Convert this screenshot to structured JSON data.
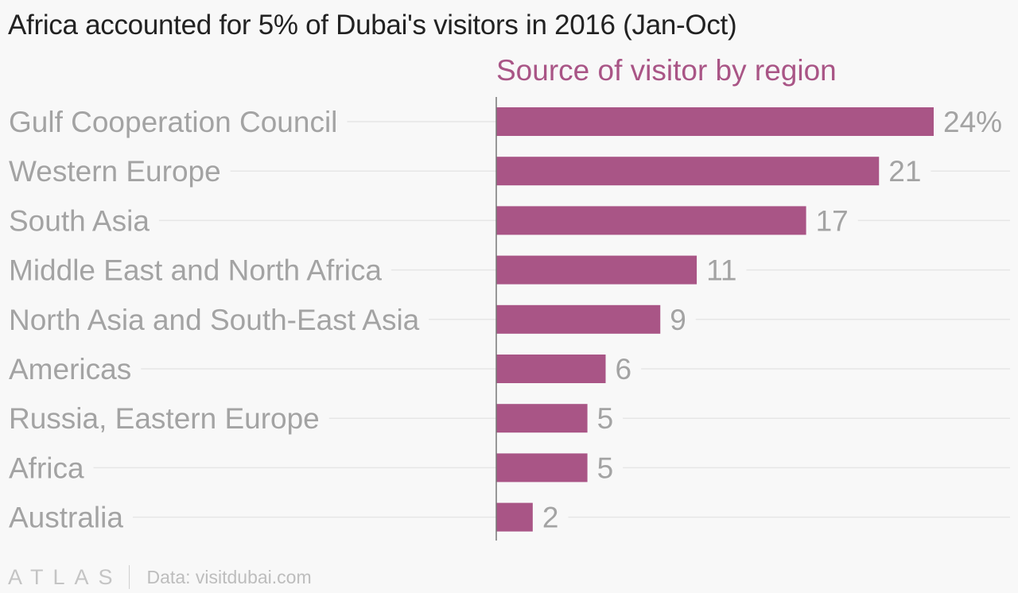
{
  "title": "Africa accounted for 5% of Dubai's visitors in 2016 (Jan-Oct)",
  "footer": {
    "logo": "ATLAS",
    "source": "Data: visitdubai.com"
  },
  "colors": {
    "bar": "#a95586",
    "subtitle": "#a95586",
    "label": "#a3a3a3",
    "gridline": "#e6e6e6",
    "axis": "#777777",
    "background": "#f8f8f8"
  },
  "chart_data": {
    "type": "bar",
    "orientation": "horizontal",
    "title": "Africa accounted for 5% of Dubai's visitors in 2016 (Jan-Oct)",
    "subtitle": "Source of visitor by region",
    "categories": [
      "Gulf Cooperation Council",
      "Western Europe",
      "South Asia",
      "Middle East and North Africa",
      "North Asia and South-East Asia",
      "Americas",
      "Russia, Eastern Europe",
      "Africa",
      "Australia"
    ],
    "values": [
      24,
      21,
      17,
      11,
      9,
      6,
      5,
      5,
      2
    ],
    "value_labels": [
      "24%",
      "21",
      "17",
      "11",
      "9",
      "6",
      "5",
      "5",
      "2"
    ],
    "unit": "%",
    "xlim": [
      0,
      24
    ],
    "grid": true,
    "legend": "none"
  }
}
